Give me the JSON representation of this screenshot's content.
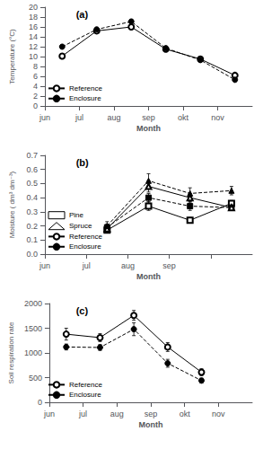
{
  "chart_data": [
    {
      "type": "line",
      "annotations": [
        "(a)"
      ],
      "x": [
        0.5,
        1.5,
        2.5,
        3.5,
        4.5,
        5.5
      ],
      "xlim": [
        0,
        6
      ],
      "xticks": [
        {
          "value": 0,
          "label": "jun"
        },
        {
          "value": 1,
          "label": "jul"
        },
        {
          "value": 2,
          "label": "aug"
        },
        {
          "value": 3,
          "label": "sep"
        },
        {
          "value": 4,
          "label": "okt"
        },
        {
          "value": 5,
          "label": "nov"
        }
      ],
      "xlabel": "Month",
      "ylabel": "Temperature (°C)",
      "ylim": [
        0,
        20
      ],
      "yticks": [
        0,
        2,
        4,
        6,
        8,
        10,
        12,
        14,
        16,
        18,
        20
      ],
      "grid": false,
      "legend": "lower left",
      "series": [
        {
          "name": "Reference",
          "values": [
            10.1,
            15.2,
            16.0,
            11.5,
            9.5,
            6.2
          ],
          "errors": [
            0.4,
            0.3,
            0.4,
            0.3,
            0.3,
            0.3
          ],
          "color": "#000000",
          "marker": "open-circle",
          "line_style": "solid"
        },
        {
          "name": "Enclosure",
          "values": [
            12.0,
            15.5,
            17.1,
            11.7,
            9.3,
            5.3
          ],
          "errors": [
            0.4,
            0.3,
            0.4,
            0.3,
            0.3,
            0.3
          ],
          "color": "#000000",
          "marker": "circle",
          "line_style": "dashed"
        }
      ]
    },
    {
      "type": "line",
      "annotations": [
        "(b)"
      ],
      "x": [
        1.5,
        2.5,
        3.5,
        4.5
      ],
      "xlim": [
        0,
        5
      ],
      "xticks": [
        {
          "value": 0,
          "label": "jun"
        },
        {
          "value": 1,
          "label": "jul"
        },
        {
          "value": 2,
          "label": "aug"
        },
        {
          "value": 3,
          "label": "sep"
        },
        {
          "value": 4,
          "label": null
        }
      ],
      "xlabel": "Month",
      "ylabel": "Moisture ( dm³ dm⁻³)",
      "ylim": [
        0,
        0.7
      ],
      "yticks": [
        {
          "value": 0,
          "label": "0.0"
        },
        0.1,
        0.2,
        0.3,
        0.4,
        0.5,
        0.6,
        0.7
      ],
      "grid": false,
      "legend": "lower left",
      "series": [
        {
          "species": "Pine",
          "treatment": "Reference",
          "values": [
            0.17,
            0.34,
            0.24,
            0.36
          ],
          "errors": [
            0.02,
            0.03,
            0.02,
            0.02
          ],
          "color": "#000000",
          "marker": "open-square",
          "line_style": "solid"
        },
        {
          "species": "Pine",
          "treatment": "Enclosure",
          "values": [
            0.19,
            0.4,
            0.34,
            0.33
          ],
          "errors": [
            0.02,
            0.03,
            0.03,
            0.02
          ],
          "color": "#000000",
          "marker": "square",
          "line_style": "dashed"
        },
        {
          "species": "Spruce",
          "treatment": "Reference",
          "values": [
            0.18,
            0.48,
            0.4,
            0.33
          ],
          "errors": [
            0.03,
            0.04,
            0.03,
            0.02
          ],
          "color": "#000000",
          "marker": "open-triangle",
          "line_style": "solid"
        },
        {
          "species": "Spruce",
          "treatment": "Enclosure",
          "values": [
            0.2,
            0.52,
            0.43,
            0.45
          ],
          "errors": [
            0.03,
            0.05,
            0.04,
            0.03
          ],
          "color": "#000000",
          "marker": "triangle",
          "line_style": "dashed"
        }
      ]
    },
    {
      "type": "line",
      "annotations": [
        "(c)"
      ],
      "x": [
        0.5,
        1.5,
        2.5,
        3.5,
        4.5,
        5.5
      ],
      "xlim": [
        0,
        6
      ],
      "xticks": [
        {
          "value": 0,
          "label": "jun"
        },
        {
          "value": 1,
          "label": "jul"
        },
        {
          "value": 2,
          "label": "aug"
        },
        {
          "value": 3,
          "label": "sep"
        },
        {
          "value": 4,
          "label": "okt"
        },
        {
          "value": 5,
          "label": "nov"
        }
      ],
      "xlabel": "Month",
      "ylabel": "Soil respiration rate",
      "ylim": [
        0,
        2000
      ],
      "yticks": [
        0,
        500,
        1000,
        1500,
        2000
      ],
      "grid": false,
      "legend": "lower left",
      "series": [
        {
          "name": "Reference",
          "values": [
            1380,
            1310,
            1760,
            1120,
            610,
            null
          ],
          "errors": [
            120,
            80,
            100,
            90,
            70,
            null
          ],
          "color": "#000000",
          "marker": "open-circle",
          "line_style": "solid"
        },
        {
          "name": "Enclosure",
          "values": [
            1120,
            1110,
            1480,
            790,
            440,
            null
          ],
          "errors": [
            60,
            60,
            130,
            80,
            50,
            null
          ],
          "color": "#000000",
          "marker": "circle",
          "line_style": "dashed"
        }
      ]
    }
  ]
}
